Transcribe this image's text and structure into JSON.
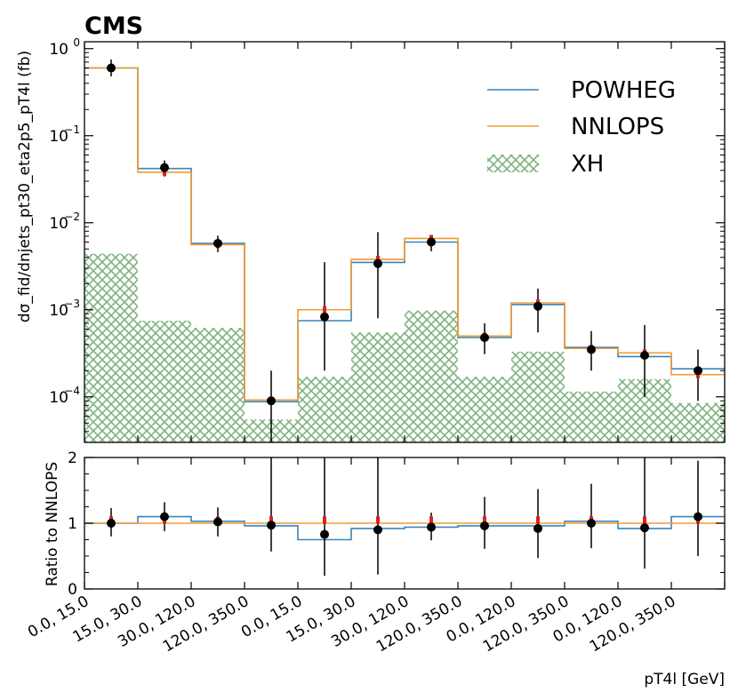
{
  "experiment_label": "CMS",
  "chart_data": {
    "type": "step-histogram-with-ratio",
    "xlabel": "pT4l [GeV]",
    "categories": [
      "0.0, 15.0",
      "15.0, 30.0",
      "30.0, 120.0",
      "120.0, 350.0",
      "0.0, 15.0",
      "15.0, 30.0",
      "30.0, 120.0",
      "120.0, 350.0",
      "0.0, 120.0",
      "120.0, 350.0",
      "0.0, 120.0",
      "120.0, 350.0"
    ],
    "top": {
      "ylabel": "dσ_fid/dnjets_pt30_eta2p5_pT4l (fb)",
      "yscale": "log",
      "ylim": [
        3e-05,
        1.2
      ],
      "yticks": [
        {
          "value": 1,
          "mantissa": "10",
          "exp": "0"
        },
        {
          "value": 0.1,
          "mantissa": "10",
          "exp": "−1"
        },
        {
          "value": 0.01,
          "mantissa": "10",
          "exp": "−2"
        },
        {
          "value": 0.001,
          "mantissa": "10",
          "exp": "−3"
        },
        {
          "value": 0.0001,
          "mantissa": "10",
          "exp": "−4"
        }
      ],
      "series": [
        {
          "name": "POWHEG",
          "style": "step",
          "color": "#3a84b8",
          "values": [
            0.6,
            0.042,
            0.0058,
            8.8e-05,
            0.00075,
            0.0035,
            0.006,
            0.00048,
            0.00115,
            0.00037,
            0.00029,
            0.00021
          ]
        },
        {
          "name": "NNLOPS",
          "style": "step",
          "color": "#f29b30",
          "values": [
            0.6,
            0.038,
            0.0056,
            9.2e-05,
            0.001,
            0.0038,
            0.0066,
            0.0005,
            0.0012,
            0.00036,
            0.00032,
            0.00018
          ]
        },
        {
          "name": "XH",
          "style": "hatched",
          "color": "#7fb27f",
          "values": [
            0.0044,
            0.00075,
            0.00062,
            5.5e-05,
            0.00017,
            0.00055,
            0.00098,
            0.00017,
            0.00033,
            0.000115,
            0.00016,
            8.5e-05
          ]
        }
      ],
      "data_points": {
        "values": [
          0.6,
          0.043,
          0.0058,
          9e-05,
          0.00083,
          0.0034,
          0.006,
          0.00048,
          0.0011,
          0.00035,
          0.0003,
          0.0002
        ],
        "err_low": [
          0.12,
          0.009,
          0.0012,
          6e-05,
          0.00063,
          0.0026,
          0.0013,
          0.00017,
          0.00055,
          0.00015,
          0.0002,
          0.00011
        ],
        "err_high": [
          0.15,
          0.009,
          0.0013,
          0.00011,
          0.0027,
          0.0044,
          0.0011,
          0.00022,
          0.00065,
          0.00022,
          0.00037,
          0.00015
        ]
      }
    },
    "ratio": {
      "ylabel": "Ratio to NNLOPS",
      "ylim": [
        0,
        2
      ],
      "yticks": [
        0,
        1,
        2
      ],
      "powheg_ratio": [
        1.0,
        1.1,
        1.03,
        0.96,
        0.75,
        0.92,
        0.94,
        0.96,
        0.96,
        1.03,
        0.92,
        1.1
      ],
      "nnlops_ratio": [
        1,
        1,
        1,
        1,
        1,
        1,
        1,
        1,
        1,
        1,
        1,
        1
      ],
      "data_points": {
        "values": [
          1.0,
          1.1,
          1.02,
          0.97,
          0.83,
          0.9,
          0.94,
          0.96,
          0.92,
          1.0,
          0.93,
          1.1
        ],
        "err_low": [
          0.2,
          0.22,
          0.22,
          0.4,
          0.63,
          0.68,
          0.2,
          0.35,
          0.45,
          0.38,
          0.62,
          0.6
        ],
        "err_high": [
          0.23,
          0.22,
          0.22,
          1.05,
          1.2,
          1.1,
          0.22,
          0.44,
          0.6,
          0.6,
          1.07,
          0.85
        ]
      }
    }
  }
}
